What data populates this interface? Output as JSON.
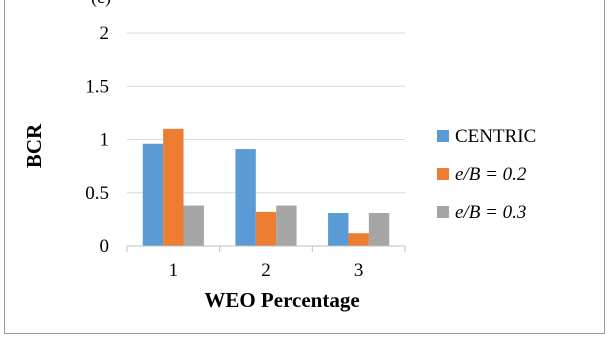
{
  "panel_label": "(c)",
  "chart_data": {
    "type": "bar",
    "title": "",
    "xlabel": "WEO Percentage",
    "ylabel": "BCR",
    "categories": [
      "1",
      "2",
      "3"
    ],
    "series": [
      {
        "name": "CENTRIC",
        "values": [
          0.96,
          0.91,
          0.31
        ],
        "color": "#5b9bd5",
        "italic": false
      },
      {
        "name": "e/B = 0.2",
        "values": [
          1.1,
          0.32,
          0.12
        ],
        "color": "#ed7d31",
        "italic": true
      },
      {
        "name": "e/B = 0.3",
        "values": [
          0.38,
          0.38,
          0.31
        ],
        "color": "#a5a5a5",
        "italic": true
      }
    ],
    "ylim": [
      0,
      2
    ],
    "yticks": [
      0,
      0.5,
      1,
      1.5,
      2
    ],
    "ytick_labels": [
      "0",
      "0.5",
      "1",
      "1.5",
      "2"
    ],
    "grid": "horizontal",
    "legend_position": "right"
  }
}
